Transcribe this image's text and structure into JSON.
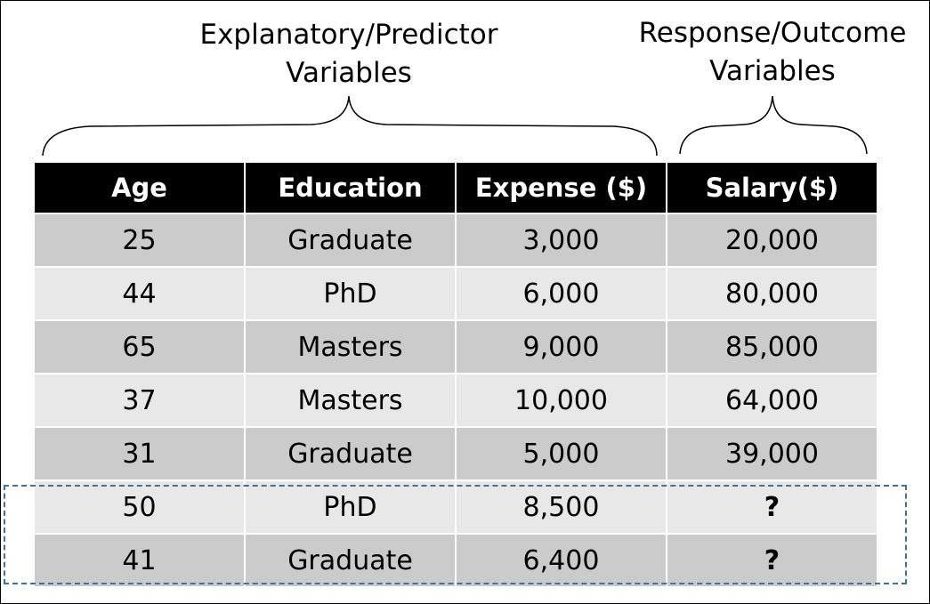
{
  "labels": {
    "predictor_line1": "Explanatory/Predictor",
    "predictor_line2": "Variables",
    "response_line1": "Response/Outcome",
    "response_line2": "Variables"
  },
  "table": {
    "headers": [
      "Age",
      "Education",
      "Expense ($)",
      "Salary($)"
    ],
    "rows": [
      [
        "25",
        "Graduate",
        "3,000",
        "20,000"
      ],
      [
        "44",
        "PhD",
        "6,000",
        "80,000"
      ],
      [
        "65",
        "Masters",
        "9,000",
        "85,000"
      ],
      [
        "37",
        "Masters",
        "10,000",
        "64,000"
      ],
      [
        "31",
        "Graduate",
        "5,000",
        "39,000"
      ],
      [
        "50",
        "PhD",
        "8,500",
        "?"
      ],
      [
        "41",
        "Graduate",
        "6,400",
        "?"
      ]
    ]
  },
  "colors": {
    "header_bg": "#000000",
    "row_dark": "#cbcbcb",
    "row_light": "#e8e8e8",
    "dashed_box": "#4a6f8f"
  }
}
